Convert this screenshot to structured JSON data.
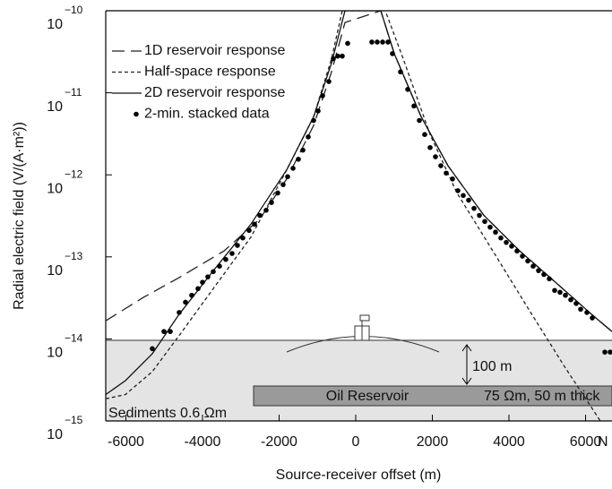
{
  "chart_data": {
    "type": "line",
    "xlabel": "Source-receiver offset (m)",
    "ylabel": "Radial electric field (V/(A·m²))",
    "xlim": [
      -6526,
      6690
    ],
    "ylim": [
      1e-15,
      1e-10
    ],
    "log_y": true,
    "xticks": [
      -6000,
      -4000,
      -2000,
      0,
      2000,
      4000,
      6000
    ],
    "yticks": [
      {
        "value": 1e-10,
        "label": "10",
        "sup": "−10"
      },
      {
        "value": 1e-11,
        "label": "10",
        "sup": "−11"
      },
      {
        "value": 1e-12,
        "label": "10",
        "sup": "−12"
      },
      {
        "value": 1e-13,
        "label": "10",
        "sup": "−13"
      },
      {
        "value": 1e-14,
        "label": "10",
        "sup": "−14"
      },
      {
        "value": 1e-15,
        "label": "10",
        "sup": "−15"
      }
    ],
    "legend": "upper left",
    "annotations": [
      "N",
      "100 m",
      "Oil Reservoir",
      "75 Ωm, 50 m thick",
      "Sediments 0.6 Ωm"
    ],
    "series": [
      {
        "name": "1D reservoir response",
        "color": "#222222",
        "style": "dashed",
        "x": [
          -6526,
          -5544,
          -4608,
          -3439,
          -2503,
          -1801,
          -1099,
          -632,
          -281,
          655,
          1006,
          1708,
          2409,
          3345,
          4281,
          5216,
          6152,
          6690
        ],
        "values": [
          1.66e-14,
          3.2e-14,
          5.6e-14,
          1.18e-13,
          2.9e-13,
          8.9e-13,
          4e-12,
          1.8e-11,
          7.2e-11,
          1e-10,
          3e-11,
          5.1e-12,
          1.29e-12,
          3.2e-13,
          1.18e-13,
          4.9e-14,
          2e-14,
          1.23e-14
        ]
      },
      {
        "name": "Half-space response",
        "color": "#222222",
        "style": "dotted",
        "x": [
          -6526,
          -6012,
          -5310,
          -4608,
          -3673,
          -2737,
          -1801,
          -1099,
          -632,
          -351,
          772,
          1240,
          1942,
          2643,
          3579,
          4515,
          5450,
          6386
        ],
        "values": [
          1.86e-15,
          2.1e-15,
          4e-15,
          1.1e-14,
          4.4e-14,
          1.74e-13,
          1.15e-12,
          5.1e-12,
          2.6e-11,
          1e-10,
          1e-10,
          2.6e-11,
          3.1e-12,
          6e-13,
          1.18e-13,
          2.3e-14,
          4.6e-15,
          1e-15
        ]
      },
      {
        "name": "2D reservoir response",
        "color": "#111111",
        "style": "solid",
        "x": [
          -6526,
          -6012,
          -5310,
          -4608,
          -3673,
          -2737,
          -1801,
          -1099,
          -632,
          -281,
          655,
          1006,
          1708,
          2409,
          3345,
          4281,
          5216,
          6152,
          6690
        ],
        "values": [
          2.1e-15,
          3.1e-15,
          6.6e-15,
          2e-14,
          7.2e-14,
          2.5e-13,
          1.15e-12,
          5.1e-12,
          2.3e-11,
          1e-10,
          1e-10,
          3e-11,
          5.1e-12,
          1.29e-12,
          3.2e-13,
          1.18e-13,
          4.9e-14,
          2e-14,
          1.23e-14
        ]
      },
      {
        "name": "2-min. stacked data",
        "color": "#000000",
        "style": "points",
        "x": [
          -5310,
          -5006,
          -4842,
          -4608,
          -4444,
          -4281,
          -4117,
          -4000,
          -3860,
          -3719,
          -3556,
          -3392,
          -3228,
          -3088,
          -2947,
          -2784,
          -2643,
          -2503,
          -2339,
          -2199,
          -2035,
          -1895,
          -1778,
          -1637,
          -1497,
          -1380,
          -1240,
          -1099,
          -982,
          -865,
          -702,
          -585,
          -468,
          -351,
          -211,
          421,
          561,
          702,
          842,
          959,
          1170,
          1357,
          1520,
          1661,
          1801,
          1942,
          2082,
          2222,
          2363,
          2526,
          2667,
          2807,
          2947,
          3088,
          3228,
          3368,
          3509,
          3649,
          3789,
          3930,
          4070,
          4211,
          4351,
          4491,
          4632,
          4772,
          4912,
          5053,
          5193,
          5333,
          5474,
          5614,
          5754,
          5871,
          6035,
          6175,
          6503,
          6643
        ],
        "values": [
          7.6e-15,
          1.23e-14,
          1.23e-14,
          2.1e-14,
          2.8e-14,
          3.4e-14,
          4.1e-14,
          4.9e-14,
          5.7e-14,
          6.6e-14,
          7.7e-14,
          9.3e-14,
          1.1e-13,
          1.38e-13,
          1.7e-13,
          2.1e-13,
          2.5e-13,
          3.2e-13,
          3.7e-13,
          4.6e-13,
          6e-13,
          7.6e-13,
          9.5e-13,
          1.2e-12,
          1.55e-12,
          2e-12,
          2.9e-12,
          4.6e-12,
          6e-12,
          9.2e-12,
          1.37e-11,
          2.6e-11,
          2.8e-11,
          2.8e-11,
          4e-11,
          4.15e-11,
          4.15e-11,
          4.15e-11,
          4.15e-11,
          3e-11,
          1.8e-11,
          1.1e-11,
          6.9e-12,
          4.6e-12,
          3.1e-12,
          2.15e-12,
          1.66e-12,
          1.29e-12,
          1.05e-12,
          8.9e-13,
          6.4e-13,
          5.6e-13,
          4.9e-13,
          3.9e-13,
          3.2e-13,
          2.7e-13,
          2.3e-13,
          2e-13,
          1.7e-13,
          1.5e-13,
          1.35e-13,
          1.18e-13,
          1.02e-13,
          8.9e-14,
          7.7e-14,
          6.8e-14,
          6.1e-14,
          5.4e-14,
          3.9e-14,
          3.7e-14,
          3.4e-14,
          3e-14,
          2.7e-14,
          2.3e-14,
          2.1e-14,
          1.8e-14,
          6.9e-15,
          6.9e-15
        ]
      }
    ]
  }
}
